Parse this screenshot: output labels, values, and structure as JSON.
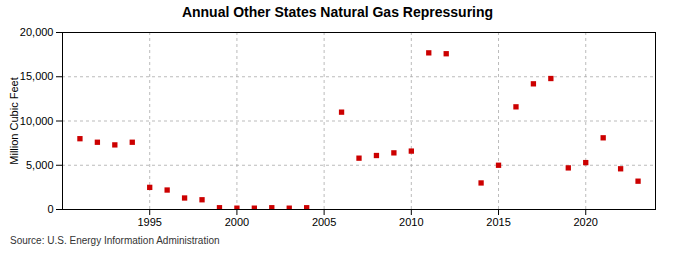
{
  "chart_data": {
    "type": "scatter",
    "title": "Annual Other States Natural Gas Repressuring",
    "ylabel": "Million Cubic Feet",
    "annotations": [
      "Source: U.S. Energy Information Administration"
    ],
    "color": "#cc0000",
    "marker": "square",
    "x": [
      1991,
      1992,
      1993,
      1994,
      1995,
      1996,
      1997,
      1998,
      1999,
      2000,
      2001,
      2002,
      2003,
      2004,
      2006,
      2007,
      2008,
      2009,
      2010,
      2011,
      2012,
      2014,
      2015,
      2016,
      2017,
      2018,
      2019,
      2020,
      2021,
      2022,
      2023
    ],
    "values": [
      8000,
      7600,
      7300,
      7600,
      2500,
      2200,
      1300,
      1100,
      200,
      150,
      150,
      200,
      150,
      200,
      11000,
      5800,
      6100,
      6400,
      6600,
      17700,
      17600,
      3000,
      5000,
      11600,
      14200,
      14800,
      4700,
      5300,
      8100,
      4600,
      3200
    ],
    "xlim": [
      1990,
      2024
    ],
    "xticks": [
      1995,
      2000,
      2005,
      2010,
      2015,
      2020
    ],
    "ylim": [
      0,
      20000
    ],
    "yticks": [
      0,
      {
        "value": 5000,
        "label": "5,000"
      },
      {
        "value": 10000,
        "label": "10,000"
      },
      {
        "value": 15000,
        "label": "15,000"
      },
      {
        "value": 20000,
        "label": "20,000"
      }
    ],
    "grid": true
  }
}
